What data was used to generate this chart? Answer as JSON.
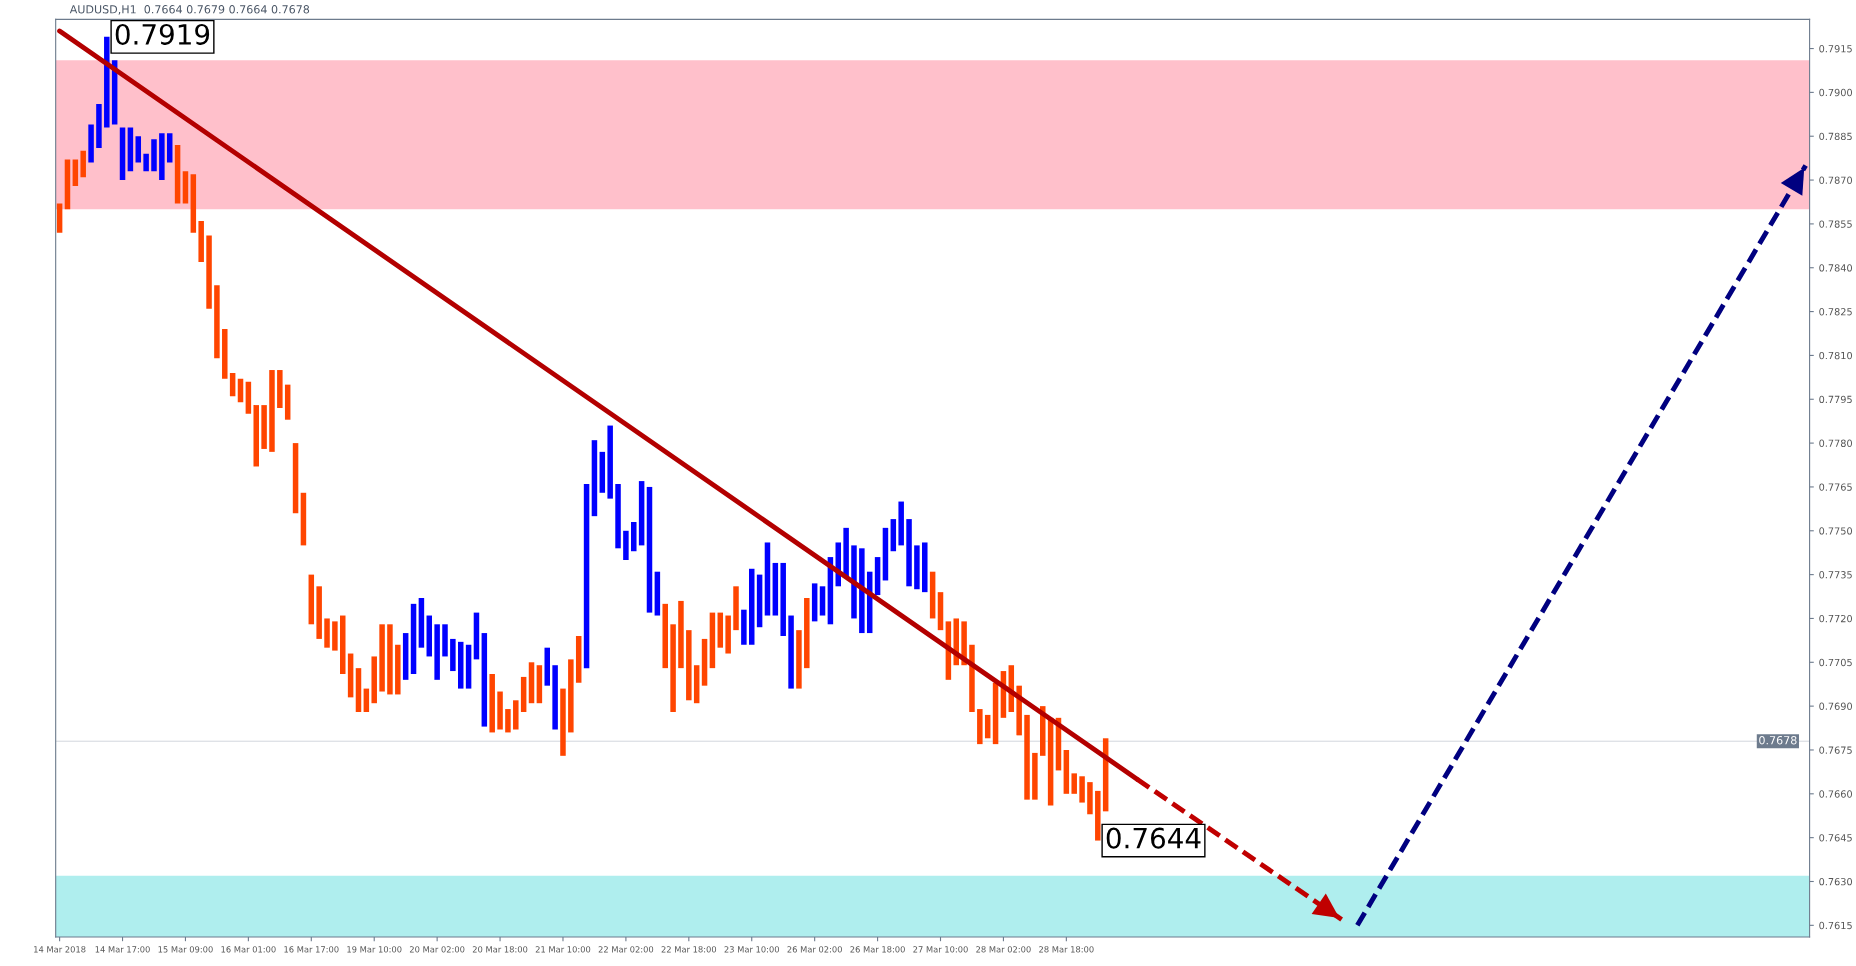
{
  "chart_data": {
    "type": "bar",
    "title": "AUDUSD,H1  0.7664 0.7679 0.7664 0.7678",
    "categories": [
      "14 Mar 2018",
      null,
      null,
      null,
      null,
      null,
      null,
      null,
      "14 Mar 17:00",
      null,
      null,
      null,
      null,
      null,
      null,
      null,
      "15 Mar 09:00",
      null,
      null,
      null,
      null,
      null,
      null,
      null,
      "16 Mar 01:00",
      null,
      null,
      null,
      null,
      null,
      null,
      null,
      "16 Mar 17:00",
      null,
      null,
      null,
      null,
      null,
      null,
      null,
      "19 Mar 10:00",
      null,
      null,
      null,
      null,
      null,
      null,
      null,
      "20 Mar 02:00",
      null,
      null,
      null,
      null,
      null,
      null,
      null,
      "20 Mar 18:00",
      null,
      null,
      null,
      null,
      null,
      null,
      null,
      "21 Mar 10:00",
      null,
      null,
      null,
      null,
      null,
      null,
      null,
      "22 Mar 02:00",
      null,
      null,
      null,
      null,
      null,
      null,
      null,
      "22 Mar 18:00",
      null,
      null,
      null,
      null,
      null,
      null,
      null,
      "23 Mar 10:00",
      null,
      null,
      null,
      null,
      null,
      null,
      null,
      "26 Mar 02:00",
      null,
      null,
      null,
      null,
      null,
      null,
      null,
      "26 Mar 18:00",
      null,
      null,
      null,
      null,
      null,
      null,
      null,
      "27 Mar 10:00",
      null,
      null,
      null,
      null,
      null,
      null,
      null,
      "28 Mar 02:00",
      null,
      null,
      null,
      null,
      null,
      null,
      null,
      "28 Mar 18:00",
      null,
      null,
      null,
      null,
      null,
      null,
      null,
      null,
      null,
      null,
      null,
      null,
      null,
      null,
      null,
      null,
      null,
      null,
      null,
      null,
      null,
      null,
      null,
      null,
      null,
      null,
      null,
      null,
      null,
      null,
      null,
      null,
      null,
      null,
      null,
      null,
      null,
      null,
      null,
      null,
      null,
      null,
      null,
      null,
      null,
      null,
      null,
      null,
      null,
      null,
      null,
      null,
      null,
      null,
      null,
      null,
      null,
      null,
      null,
      null,
      null,
      null,
      null,
      null,
      null,
      null,
      null,
      null,
      null,
      null,
      null,
      null,
      null,
      null,
      null,
      null,
      null,
      null,
      null,
      null,
      null,
      null,
      null,
      null,
      null,
      null,
      null,
      null,
      null,
      null,
      null,
      null,
      null,
      null
    ],
    "series": [
      {
        "base": [
          0.7852,
          0.786,
          0.7868,
          0.7871,
          0.7876,
          0.7881,
          0.7888,
          0.7889,
          0.787,
          0.7873,
          0.7876,
          0.7873,
          0.7873,
          0.787,
          0.7876,
          0.7862,
          0.7862,
          0.7852,
          0.7842,
          0.7826,
          0.7809,
          0.7802,
          0.7796,
          0.7794,
          0.779,
          0.7772,
          0.7778,
          0.7777,
          0.7792,
          0.7788,
          0.7756,
          0.7745,
          0.7718,
          0.7713,
          0.771,
          0.7709,
          0.7701,
          0.7693,
          0.7688,
          0.7688,
          0.7691,
          0.7695,
          0.7694,
          0.7694,
          0.7699,
          0.7701,
          0.771,
          0.7707,
          0.7699,
          0.7707,
          0.7702,
          0.7696,
          0.7696,
          0.7706,
          0.7683,
          0.7681,
          0.7682,
          0.7681,
          0.7682,
          0.7688,
          0.7691,
          0.7691,
          0.7697,
          0.7682,
          0.7673,
          0.7681,
          0.7698,
          0.7703,
          0.7755,
          0.7763,
          0.7761,
          0.7744,
          0.774,
          0.7743,
          0.7745,
          0.7722,
          0.7721,
          0.7703,
          0.7688,
          0.7703,
          0.7692,
          0.7691,
          0.7697,
          0.7703,
          0.771,
          0.7708,
          0.7716,
          0.7711,
          0.7711,
          0.7717,
          0.7721,
          0.7721,
          0.7714,
          0.7696,
          0.7696,
          0.7703,
          0.7719,
          0.7721,
          0.7718,
          0.7731,
          0.7734,
          0.772,
          0.7715,
          0.7715,
          0.7728,
          0.7733,
          0.7743,
          0.7745,
          0.7731,
          0.773,
          0.7729,
          0.772,
          0.7716,
          0.7699,
          0.7704,
          0.7704,
          0.7688,
          0.7677,
          0.7679,
          0.7677,
          0.7686,
          0.7688,
          0.768,
          0.7658,
          0.7658,
          0.7673,
          0.7656,
          0.7668,
          0.766,
          0.766,
          0.7657,
          0.7653,
          0.7644,
          0.7654,
          null,
          null,
          null,
          null,
          null,
          null,
          null,
          null,
          null,
          null,
          null,
          null,
          null,
          null,
          null,
          null,
          null,
          null,
          null,
          null,
          null,
          null,
          null,
          null,
          null,
          null,
          null,
          null,
          null,
          null,
          null,
          null,
          null,
          null,
          null,
          null,
          null,
          null,
          null,
          null,
          null,
          null,
          null,
          null,
          null,
          null,
          null,
          null,
          null,
          null,
          null,
          null,
          null,
          null,
          null,
          null,
          null,
          null,
          null,
          null,
          null,
          null,
          null,
          null,
          null,
          null,
          null,
          null,
          null,
          null,
          null,
          null,
          null,
          null,
          null,
          null,
          null,
          null,
          null,
          null,
          null,
          null,
          null,
          null,
          null,
          null,
          null,
          null,
          null
        ],
        "values": [
          0.001,
          0.0017,
          0.0009,
          0.0009,
          0.0013,
          0.0015,
          0.0031,
          0.0022,
          0.0018,
          0.0015,
          0.0009,
          0.0006,
          0.0011,
          0.0016,
          0.001,
          0.002,
          0.0011,
          0.002,
          0.0014,
          0.0025,
          0.0025,
          0.0017,
          0.0008,
          0.0008,
          0.0011,
          0.0021,
          0.0015,
          0.0028,
          0.0013,
          0.0012,
          0.0024,
          0.0018,
          0.0017,
          0.0018,
          0.001,
          0.001,
          0.002,
          0.0015,
          0.0015,
          0.0008,
          0.0016,
          0.0023,
          0.0024,
          0.0017,
          0.0016,
          0.0024,
          0.0017,
          0.0014,
          0.0019,
          0.0011,
          0.0011,
          0.0016,
          0.0015,
          0.0016,
          0.0032,
          0.002,
          0.0013,
          0.0008,
          0.001,
          0.0012,
          0.0014,
          0.0013,
          0.0013,
          0.0022,
          0.0023,
          0.0025,
          0.0016,
          0.0063,
          0.0026,
          0.0014,
          0.0025,
          0.0022,
          0.001,
          0.001,
          0.0022,
          0.0043,
          0.0015,
          0.0022,
          0.003,
          0.0023,
          0.0024,
          0.0013,
          0.0016,
          0.0019,
          0.0012,
          0.0013,
          0.0015,
          0.0012,
          0.0026,
          0.0018,
          0.0025,
          0.0018,
          0.0025,
          0.0025,
          0.002,
          0.0024,
          0.0013,
          0.001,
          0.0023,
          0.0015,
          0.0017,
          0.0025,
          0.0029,
          0.0021,
          0.0013,
          0.0018,
          0.0011,
          0.0015,
          0.0023,
          0.0015,
          0.0017,
          0.0016,
          0.0013,
          0.002,
          0.0016,
          0.0015,
          0.0023,
          0.0012,
          0.0008,
          0.0021,
          0.0016,
          0.0016,
          0.0017,
          0.0029,
          0.0016,
          0.0017,
          0.003,
          0.0018,
          0.0015,
          0.0007,
          0.0009,
          0.0011,
          0.0017,
          0.0025,
          null,
          null,
          null,
          null,
          null,
          null,
          null,
          null,
          null,
          null,
          null,
          null,
          null,
          null,
          null,
          null,
          null,
          null,
          null,
          null,
          null,
          null,
          null,
          null,
          null,
          null,
          null,
          null,
          null,
          null,
          null,
          null,
          null,
          null,
          null,
          null,
          null,
          null,
          null,
          null,
          null,
          null,
          null,
          null,
          null,
          null,
          null,
          null,
          null,
          null,
          null,
          null,
          null,
          null,
          null,
          null,
          null,
          null,
          null,
          null,
          null,
          null,
          null,
          null,
          null,
          null,
          null,
          null,
          null,
          null,
          null,
          null,
          null,
          null,
          null,
          null,
          null,
          null,
          null,
          null,
          null,
          null,
          null,
          null,
          null,
          null,
          null,
          null,
          null
        ],
        "colors": [
          "#ff4500",
          "#ff4500",
          "#ff4500",
          "#ff4500",
          "#0000ff",
          "#0000ff",
          "#0000ff",
          "#0000ff",
          "#0000ff",
          "#0000ff",
          "#0000ff",
          "#0000ff",
          "#0000ff",
          "#0000ff",
          "#0000ff",
          "#ff4500",
          "#ff4500",
          "#ff4500",
          "#ff4500",
          "#ff4500",
          "#ff4500",
          "#ff4500",
          "#ff4500",
          "#ff4500",
          "#ff4500",
          "#ff4500",
          "#ff4500",
          "#ff4500",
          "#ff4500",
          "#ff4500",
          "#ff4500",
          "#ff4500",
          "#ff4500",
          "#ff4500",
          "#ff4500",
          "#ff4500",
          "#ff4500",
          "#ff4500",
          "#ff4500",
          "#ff4500",
          "#ff4500",
          "#ff4500",
          "#ff4500",
          "#ff4500",
          "#0000ff",
          "#0000ff",
          "#0000ff",
          "#0000ff",
          "#0000ff",
          "#0000ff",
          "#0000ff",
          "#0000ff",
          "#0000ff",
          "#0000ff",
          "#0000ff",
          "#ff4500",
          "#ff4500",
          "#ff4500",
          "#ff4500",
          "#ff4500",
          "#ff4500",
          "#ff4500",
          "#0000ff",
          "#0000ff",
          "#ff4500",
          "#ff4500",
          "#ff4500",
          "#0000ff",
          "#0000ff",
          "#0000ff",
          "#0000ff",
          "#0000ff",
          "#0000ff",
          "#0000ff",
          "#0000ff",
          "#0000ff",
          "#0000ff",
          "#ff4500",
          "#ff4500",
          "#ff4500",
          "#ff4500",
          "#ff4500",
          "#ff4500",
          "#ff4500",
          "#ff4500",
          "#ff4500",
          "#ff4500",
          "#0000ff",
          "#0000ff",
          "#0000ff",
          "#0000ff",
          "#0000ff",
          "#0000ff",
          "#0000ff",
          "#ff4500",
          "#ff4500",
          "#0000ff",
          "#0000ff",
          "#0000ff",
          "#0000ff",
          "#0000ff",
          "#0000ff",
          "#0000ff",
          "#0000ff",
          "#0000ff",
          "#0000ff",
          "#0000ff",
          "#0000ff",
          "#0000ff",
          "#0000ff",
          "#0000ff",
          "#ff4500",
          "#ff4500",
          "#ff4500",
          "#ff4500",
          "#ff4500",
          "#ff4500",
          "#ff4500",
          "#ff4500",
          "#ff4500",
          "#ff4500",
          "#ff4500",
          "#ff4500",
          "#ff4500",
          "#ff4500",
          "#ff4500",
          "#ff4500",
          "#ff4500",
          "#ff4500",
          "#ff4500",
          "#ff4500",
          "#ff4500",
          "#ff4500",
          "#ff4500",
          null,
          null,
          null,
          null,
          null,
          null,
          null,
          null,
          null,
          null,
          null,
          null,
          null,
          null,
          null,
          null,
          null,
          null,
          null,
          null,
          null,
          null,
          null,
          null,
          null,
          null,
          null,
          null,
          null,
          null,
          null,
          null,
          null,
          null,
          null,
          null,
          null,
          null,
          null,
          null,
          null,
          null,
          null,
          null,
          null,
          null,
          null,
          null,
          null,
          null,
          null,
          null,
          null,
          null,
          null,
          null,
          null,
          null,
          null,
          null,
          null,
          null,
          null,
          null,
          null,
          null,
          null,
          null,
          null,
          null,
          null,
          null,
          null,
          null,
          null,
          null,
          null,
          null,
          null,
          null,
          null,
          null,
          null,
          null,
          null,
          null,
          null,
          null,
          null
        ]
      },
      {
        "type": "line",
        "color": "#b30000",
        "line_style": "solid",
        "values": [
          0.7921,
          null,
          null,
          null,
          null,
          null,
          null,
          null,
          null,
          null,
          null,
          null,
          null,
          null,
          null,
          null,
          null,
          null,
          null,
          null,
          null,
          null,
          null,
          null,
          null,
          null,
          null,
          null,
          null,
          null,
          null,
          null,
          null,
          null,
          null,
          null,
          null,
          null,
          null,
          null,
          null,
          null,
          null,
          null,
          null,
          null,
          null,
          null,
          null,
          null,
          null,
          null,
          null,
          null,
          null,
          null,
          null,
          null,
          null,
          null,
          null,
          null,
          null,
          null,
          null,
          null,
          null,
          null,
          null,
          null,
          null,
          null,
          null,
          null,
          null,
          null,
          null,
          null,
          null,
          null,
          null,
          null,
          null,
          null,
          null,
          null,
          null,
          null,
          null,
          null,
          null,
          null,
          null,
          null,
          null,
          null,
          null,
          null,
          null,
          null,
          null,
          null,
          null,
          null,
          null,
          null,
          null,
          null,
          null,
          null,
          null,
          null,
          null,
          null,
          null,
          null,
          null,
          null,
          null,
          null,
          null,
          null,
          null,
          null,
          null,
          null,
          null,
          null,
          null,
          null,
          null,
          null,
          null,
          null,
          null,
          null,
          null,
          0.7665,
          null,
          null,
          null,
          null,
          null,
          null,
          null,
          null,
          null,
          null,
          null,
          null,
          null,
          null,
          null,
          null,
          null,
          null,
          null,
          null,
          null,
          null,
          null,
          null,
          null,
          null,
          null,
          null,
          null,
          null,
          null,
          null,
          null,
          null,
          null,
          null,
          null,
          null,
          null,
          null,
          null,
          null,
          null,
          null,
          null,
          null,
          null,
          null,
          null,
          null,
          null,
          null,
          null,
          null,
          null,
          null,
          null,
          null,
          null,
          null,
          null,
          null,
          null,
          null,
          null,
          null,
          null,
          null,
          null,
          null,
          null,
          null,
          null,
          null,
          null,
          null,
          null,
          null,
          null,
          null,
          null,
          null,
          null,
          null,
          null
        ]
      },
      {
        "type": "line",
        "color": "#c00000",
        "line_style": "dashed",
        "values": [
          null,
          null,
          null,
          null,
          null,
          null,
          null,
          null,
          null,
          null,
          null,
          null,
          null,
          null,
          null,
          null,
          null,
          null,
          null,
          null,
          null,
          null,
          null,
          null,
          null,
          null,
          null,
          null,
          null,
          null,
          null,
          null,
          null,
          null,
          null,
          null,
          null,
          null,
          null,
          null,
          null,
          null,
          null,
          null,
          null,
          null,
          null,
          null,
          null,
          null,
          null,
          null,
          null,
          null,
          null,
          null,
          null,
          null,
          null,
          null,
          null,
          null,
          null,
          null,
          null,
          null,
          null,
          null,
          null,
          null,
          null,
          null,
          null,
          null,
          null,
          null,
          null,
          null,
          null,
          null,
          null,
          null,
          null,
          null,
          null,
          null,
          null,
          null,
          null,
          null,
          null,
          null,
          null,
          null,
          null,
          null,
          null,
          null,
          null,
          null,
          null,
          null,
          null,
          null,
          null,
          null,
          null,
          null,
          null,
          null,
          null,
          null,
          null,
          null,
          null,
          null,
          null,
          null,
          null,
          null,
          null,
          null,
          null,
          null,
          null,
          null,
          null,
          null,
          null,
          null,
          null,
          null,
          null,
          null,
          null,
          null,
          null,
          0.7665,
          null,
          null,
          null,
          null,
          null,
          null,
          null,
          null,
          null,
          null,
          null,
          null,
          null,
          null,
          null,
          null,
          null,
          null,
          null,
          null,
          null,
          null,
          null,
          null,
          null,
          0.7617,
          null,
          null,
          null,
          null,
          null,
          null,
          null,
          null,
          null,
          null,
          null,
          null,
          null,
          null,
          null,
          null,
          null,
          null,
          null,
          null,
          null,
          null,
          null,
          null,
          null,
          null,
          null,
          null,
          null,
          null,
          null,
          null,
          null,
          null,
          null,
          null,
          null,
          null,
          null,
          null,
          null,
          null,
          null,
          null,
          null,
          null,
          null,
          null,
          null,
          null,
          null,
          null,
          null,
          null,
          null,
          null,
          null,
          null,
          null
        ]
      },
      {
        "type": "line",
        "color": "#000080",
        "line_style": "dashed",
        "values": [
          null,
          null,
          null,
          null,
          null,
          null,
          null,
          null,
          null,
          null,
          null,
          null,
          null,
          null,
          null,
          null,
          null,
          null,
          null,
          null,
          null,
          null,
          null,
          null,
          null,
          null,
          null,
          null,
          null,
          null,
          null,
          null,
          null,
          null,
          null,
          null,
          null,
          null,
          null,
          null,
          null,
          null,
          null,
          null,
          null,
          null,
          null,
          null,
          null,
          null,
          null,
          null,
          null,
          null,
          null,
          null,
          null,
          null,
          null,
          null,
          null,
          null,
          null,
          null,
          null,
          null,
          null,
          null,
          null,
          null,
          null,
          null,
          null,
          null,
          null,
          null,
          null,
          null,
          null,
          null,
          null,
          null,
          null,
          null,
          null,
          null,
          null,
          null,
          null,
          null,
          null,
          null,
          null,
          null,
          null,
          null,
          null,
          null,
          null,
          null,
          null,
          null,
          null,
          null,
          null,
          null,
          null,
          null,
          null,
          null,
          null,
          null,
          null,
          null,
          null,
          null,
          null,
          null,
          null,
          null,
          null,
          null,
          null,
          null,
          null,
          null,
          null,
          null,
          null,
          null,
          null,
          null,
          null,
          null,
          null,
          null,
          null,
          null,
          null,
          null,
          null,
          null,
          null,
          null,
          null,
          null,
          null,
          null,
          null,
          null,
          null,
          null,
          null,
          null,
          null,
          null,
          null,
          null,
          null,
          null,
          null,
          null,
          null,
          null,
          null,
          0.7615,
          null,
          null,
          null,
          null,
          null,
          null,
          null,
          null,
          null,
          null,
          null,
          null,
          null,
          null,
          null,
          null,
          null,
          null,
          null,
          null,
          null,
          null,
          null,
          null,
          null,
          null,
          null,
          null,
          null,
          null,
          null,
          null,
          null,
          null,
          null,
          null,
          null,
          null,
          null,
          null,
          null,
          null,
          null,
          null,
          null,
          null,
          null,
          null,
          null,
          null,
          null,
          null,
          null,
          null,
          null,
          null,
          0.7875
        ]
      }
    ],
    "ylim": [
      0.7611,
      0.7925
    ],
    "yticks": [
      0.7615,
      {
        "value": 0.763,
        "label": "0.7630"
      },
      0.7645,
      {
        "value": 0.766,
        "label": "0.7660"
      },
      0.7675,
      {
        "value": 0.769,
        "label": "0.7690"
      },
      0.7705,
      {
        "value": 0.772,
        "label": "0.7720"
      },
      0.7735,
      {
        "value": 0.775,
        "label": "0.7750"
      },
      0.7765,
      {
        "value": 0.778,
        "label": "0.7780"
      },
      0.7795,
      {
        "value": 0.781,
        "label": "0.7810"
      },
      0.7825,
      {
        "value": 0.784,
        "label": "0.7840"
      },
      0.7855,
      {
        "value": 0.787,
        "label": "0.7870"
      },
      0.7885,
      {
        "value": 0.79,
        "label": "0.7900"
      },
      0.7915
    ],
    "bands": [
      {
        "axis": "y",
        "from": 0.786,
        "to": 0.7911,
        "color": "#ffc0cb"
      },
      {
        "axis": "y",
        "from": 0.7611,
        "to": 0.7632,
        "color": "#afeeee"
      }
    ],
    "ref_lines": [
      {
        "axis": "y",
        "value": 0.7678,
        "label": "0.7678"
      }
    ],
    "annotations": [
      "0.7919",
      "0.7644"
    ],
    "grid": false,
    "legend": false
  }
}
